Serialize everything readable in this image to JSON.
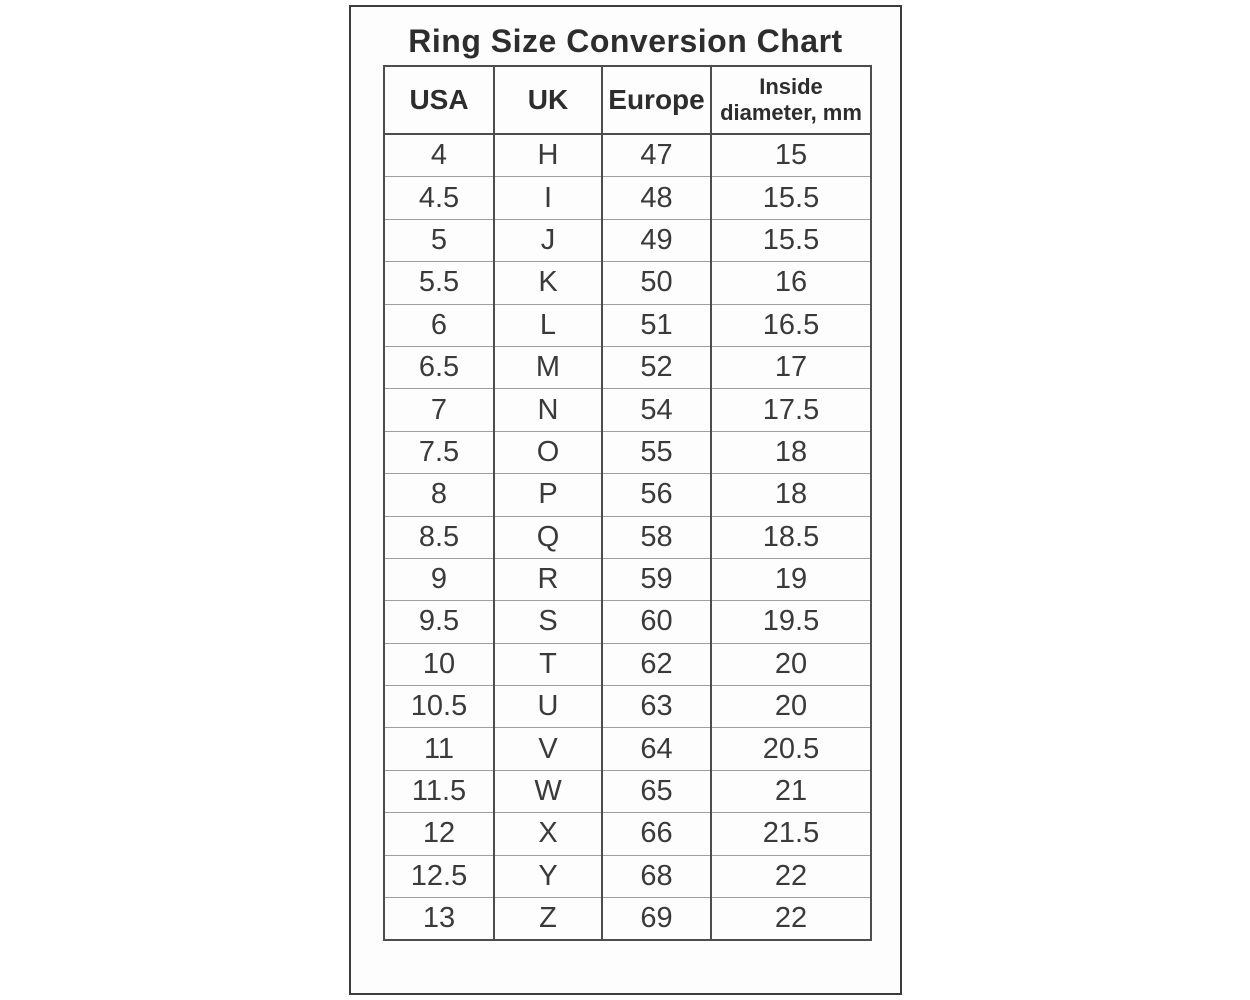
{
  "chart_data": {
    "type": "table",
    "title": "Ring Size Conversion Chart",
    "columns": [
      "USA",
      "UK",
      "Europe",
      "Inside diameter, mm"
    ],
    "rows": [
      [
        "4",
        "H",
        "47",
        "15"
      ],
      [
        "4.5",
        "I",
        "48",
        "15.5"
      ],
      [
        "5",
        "J",
        "49",
        "15.5"
      ],
      [
        "5.5",
        "K",
        "50",
        "16"
      ],
      [
        "6",
        "L",
        "51",
        "16.5"
      ],
      [
        "6.5",
        "M",
        "52",
        "17"
      ],
      [
        "7",
        "N",
        "54",
        "17.5"
      ],
      [
        "7.5",
        "O",
        "55",
        "18"
      ],
      [
        "8",
        "P",
        "56",
        "18"
      ],
      [
        "8.5",
        "Q",
        "58",
        "18.5"
      ],
      [
        "9",
        "R",
        "59",
        "19"
      ],
      [
        "9.5",
        "S",
        "60",
        "19.5"
      ],
      [
        "10",
        "T",
        "62",
        "20"
      ],
      [
        "10.5",
        "U",
        "63",
        "20"
      ],
      [
        "11",
        "V",
        "64",
        "20.5"
      ],
      [
        "11.5",
        "W",
        "65",
        "21"
      ],
      [
        "12",
        "X",
        "66",
        "21.5"
      ],
      [
        "12.5",
        "Y",
        "68",
        "22"
      ],
      [
        "13",
        "Z",
        "69",
        "22"
      ]
    ],
    "layout": {
      "legend": "none",
      "grid": "table-borders",
      "border_color": "#4d4d4d",
      "row_separator_color": "#9e9e9e",
      "background": "#fdfdfe",
      "text_color": "#3a3a3a"
    }
  }
}
